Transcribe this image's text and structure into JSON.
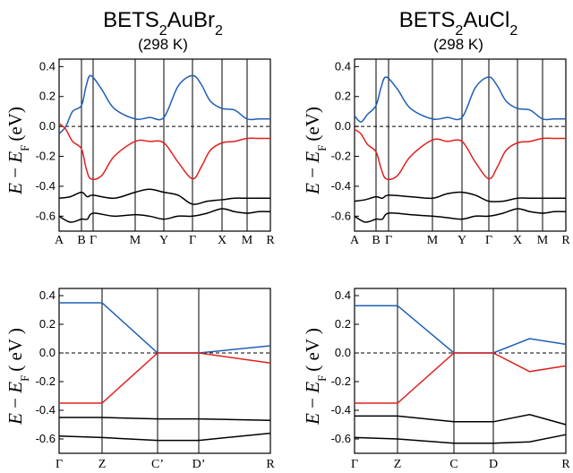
{
  "titles": [
    {
      "main": "BETS",
      "sub1": "2",
      "mid": "AuBr",
      "sub2": "2",
      "temp": "(298 K)"
    },
    {
      "main": "BETS",
      "sub1": "2",
      "mid": "AuCl",
      "sub2": "2",
      "temp": "(298 K)"
    }
  ],
  "ylabel": {
    "E": "E",
    "minus": " − ",
    "EF": "E",
    "F": "F",
    "unit": "(eV)",
    "unit_spaced": "( eV )"
  },
  "colors": {
    "conduction": "#1f5fb4",
    "valence": "#e0201f",
    "lower": "#000000"
  },
  "chart_data": [
    {
      "type": "line",
      "ylim": [
        -0.7,
        0.45
      ],
      "yticks": [
        -0.6,
        -0.4,
        -0.2,
        0.0,
        0.2,
        0.4
      ],
      "ytick_labels": [
        "-0.6",
        "-0.4",
        "-0.2",
        "0.0",
        "0.2",
        "0.4"
      ],
      "kpoints": [
        "A",
        "B",
        "Γ",
        "M",
        "Y",
        "Γ",
        "X",
        "M",
        "R"
      ],
      "series": [
        {
          "role": "conduction",
          "x": [
            0,
            0.3,
            0.6,
            1,
            1.4,
            1.8,
            2.2,
            2.5,
            3,
            3.5,
            4,
            4.5,
            5,
            5.3,
            5.6,
            6,
            6.5,
            7,
            7.5,
            8
          ],
          "values": [
            -0.05,
            0.0,
            0.1,
            0.14,
            0.27,
            0.34,
            0.25,
            0.12,
            0.05,
            0.06,
            0.06,
            0.27,
            0.34,
            0.28,
            0.17,
            0.12,
            0.11,
            0.05,
            0.05,
            0.05
          ]
        },
        {
          "role": "valence",
          "x": [
            0,
            0.3,
            0.6,
            1,
            1.4,
            1.8,
            2.2,
            2.5,
            3,
            3.5,
            4,
            4.5,
            5,
            5.3,
            5.6,
            6,
            6.5,
            7,
            7.5,
            8
          ],
          "values": [
            0.02,
            -0.02,
            -0.1,
            -0.15,
            -0.28,
            -0.35,
            -0.33,
            -0.2,
            -0.1,
            -0.1,
            -0.11,
            -0.24,
            -0.35,
            -0.27,
            -0.16,
            -0.11,
            -0.1,
            -0.08,
            -0.08,
            -0.08
          ]
        },
        {
          "role": "lower",
          "x": [
            0,
            0.5,
            1,
            1.5,
            2,
            2.5,
            3,
            3.5,
            4,
            4.5,
            5,
            5.5,
            6,
            6.5,
            7,
            7.5,
            8
          ],
          "values": [
            -0.48,
            -0.47,
            -0.44,
            -0.47,
            -0.46,
            -0.48,
            -0.44,
            -0.42,
            -0.44,
            -0.46,
            -0.52,
            -0.5,
            -0.49,
            -0.48,
            -0.48,
            -0.48,
            -0.48
          ]
        },
        {
          "role": "lower",
          "x": [
            0,
            0.5,
            1,
            1.5,
            2,
            2.5,
            3,
            3.5,
            4,
            4.5,
            5,
            5.5,
            6,
            6.5,
            7,
            7.5,
            8
          ],
          "values": [
            -0.6,
            -0.64,
            -0.62,
            -0.62,
            -0.58,
            -0.6,
            -0.59,
            -0.6,
            -0.62,
            -0.6,
            -0.6,
            -0.58,
            -0.55,
            -0.57,
            -0.58,
            -0.57,
            -0.57
          ]
        }
      ]
    },
    {
      "type": "line",
      "ylim": [
        -0.7,
        0.45
      ],
      "yticks": [
        -0.6,
        -0.4,
        -0.2,
        0.0,
        0.2,
        0.4
      ],
      "ytick_labels": [
        "-0.6",
        "-0.4",
        "-0.2",
        "0.0",
        "0.2",
        "0.4"
      ],
      "kpoints": [
        "A",
        "B",
        "Γ",
        "M",
        "Y",
        "Γ",
        "X",
        "M",
        "R"
      ],
      "series": [
        {
          "role": "conduction",
          "x": [
            0,
            0.3,
            0.6,
            1,
            1.4,
            1.8,
            2.2,
            2.5,
            3,
            3.5,
            4,
            4.5,
            5,
            5.3,
            5.6,
            6,
            6.5,
            7,
            7.5,
            8
          ],
          "values": [
            0.07,
            0.03,
            0.08,
            0.14,
            0.26,
            0.33,
            0.25,
            0.12,
            0.05,
            0.06,
            0.06,
            0.26,
            0.33,
            0.27,
            0.17,
            0.12,
            0.11,
            0.05,
            0.05,
            0.05
          ]
        },
        {
          "role": "valence",
          "x": [
            0,
            0.3,
            0.6,
            1,
            1.4,
            1.8,
            2.2,
            2.5,
            3,
            3.5,
            4,
            4.5,
            5,
            5.3,
            5.6,
            6,
            6.5,
            7,
            7.5,
            8
          ],
          "values": [
            -0.02,
            -0.05,
            -0.12,
            -0.17,
            -0.28,
            -0.35,
            -0.33,
            -0.2,
            -0.09,
            -0.1,
            -0.1,
            -0.24,
            -0.35,
            -0.27,
            -0.16,
            -0.11,
            -0.1,
            -0.08,
            -0.08,
            -0.08
          ]
        },
        {
          "role": "lower",
          "x": [
            0,
            0.5,
            1,
            1.5,
            2,
            2.5,
            3,
            3.5,
            4,
            4.5,
            5,
            5.5,
            6,
            6.5,
            7,
            7.5,
            8
          ],
          "values": [
            -0.5,
            -0.49,
            -0.47,
            -0.48,
            -0.46,
            -0.47,
            -0.48,
            -0.45,
            -0.44,
            -0.46,
            -0.5,
            -0.5,
            -0.48,
            -0.48,
            -0.48,
            -0.48,
            -0.48
          ]
        },
        {
          "role": "lower",
          "x": [
            0,
            0.5,
            1,
            1.5,
            2,
            2.5,
            3,
            3.5,
            4,
            4.5,
            5,
            5.5,
            6,
            6.5,
            7,
            7.5,
            8
          ],
          "values": [
            -0.6,
            -0.64,
            -0.62,
            -0.62,
            -0.58,
            -0.59,
            -0.6,
            -0.61,
            -0.62,
            -0.6,
            -0.6,
            -0.58,
            -0.55,
            -0.57,
            -0.58,
            -0.57,
            -0.57
          ]
        }
      ]
    },
    {
      "type": "line",
      "ylim": [
        -0.7,
        0.45
      ],
      "yticks": [
        -0.6,
        -0.4,
        -0.2,
        0.0,
        0.2,
        0.4
      ],
      "ytick_labels": [
        "-0.6",
        "-0.4",
        "-0.2",
        "0.0",
        "0.2",
        "0.4"
      ],
      "kpoints": [
        "Γ",
        "Z",
        "C’",
        "D’",
        "R"
      ],
      "series": [
        {
          "role": "conduction",
          "x": [
            0,
            1,
            2,
            3,
            4
          ],
          "values": [
            0.35,
            0.35,
            0.0,
            0.0,
            0.05
          ]
        },
        {
          "role": "valence",
          "x": [
            0,
            1,
            2,
            3,
            4
          ],
          "values": [
            -0.35,
            -0.35,
            0.0,
            0.0,
            -0.07
          ]
        },
        {
          "role": "lower",
          "x": [
            0,
            1,
            2,
            3,
            4
          ],
          "values": [
            -0.45,
            -0.45,
            -0.46,
            -0.46,
            -0.47
          ]
        },
        {
          "role": "lower",
          "x": [
            0,
            1,
            2,
            3,
            4
          ],
          "values": [
            -0.58,
            -0.59,
            -0.61,
            -0.61,
            -0.56
          ]
        }
      ]
    },
    {
      "type": "line",
      "ylim": [
        -0.7,
        0.45
      ],
      "yticks": [
        -0.6,
        -0.4,
        -0.2,
        0.0,
        0.2,
        0.4
      ],
      "ytick_labels": [
        "-0.6",
        "-0.4",
        "-0.2",
        "0.0",
        "0.2",
        "0.4"
      ],
      "kpoints": [
        "Γ",
        "Z",
        "C",
        "D",
        "R"
      ],
      "series": [
        {
          "role": "conduction",
          "x": [
            0,
            1,
            2,
            3,
            3.5,
            4
          ],
          "values": [
            0.33,
            0.33,
            0.0,
            0.0,
            0.1,
            0.06
          ]
        },
        {
          "role": "valence",
          "x": [
            0,
            1,
            2,
            3,
            3.5,
            4
          ],
          "values": [
            -0.35,
            -0.35,
            0.0,
            0.0,
            -0.13,
            -0.09
          ]
        },
        {
          "role": "lower",
          "x": [
            0,
            1,
            2,
            3,
            3.5,
            4
          ],
          "values": [
            -0.44,
            -0.44,
            -0.48,
            -0.48,
            -0.43,
            -0.5
          ]
        },
        {
          "role": "lower",
          "x": [
            0,
            1,
            2,
            3,
            3.5,
            4
          ],
          "values": [
            -0.59,
            -0.6,
            -0.63,
            -0.63,
            -0.62,
            -0.57
          ]
        }
      ]
    }
  ]
}
